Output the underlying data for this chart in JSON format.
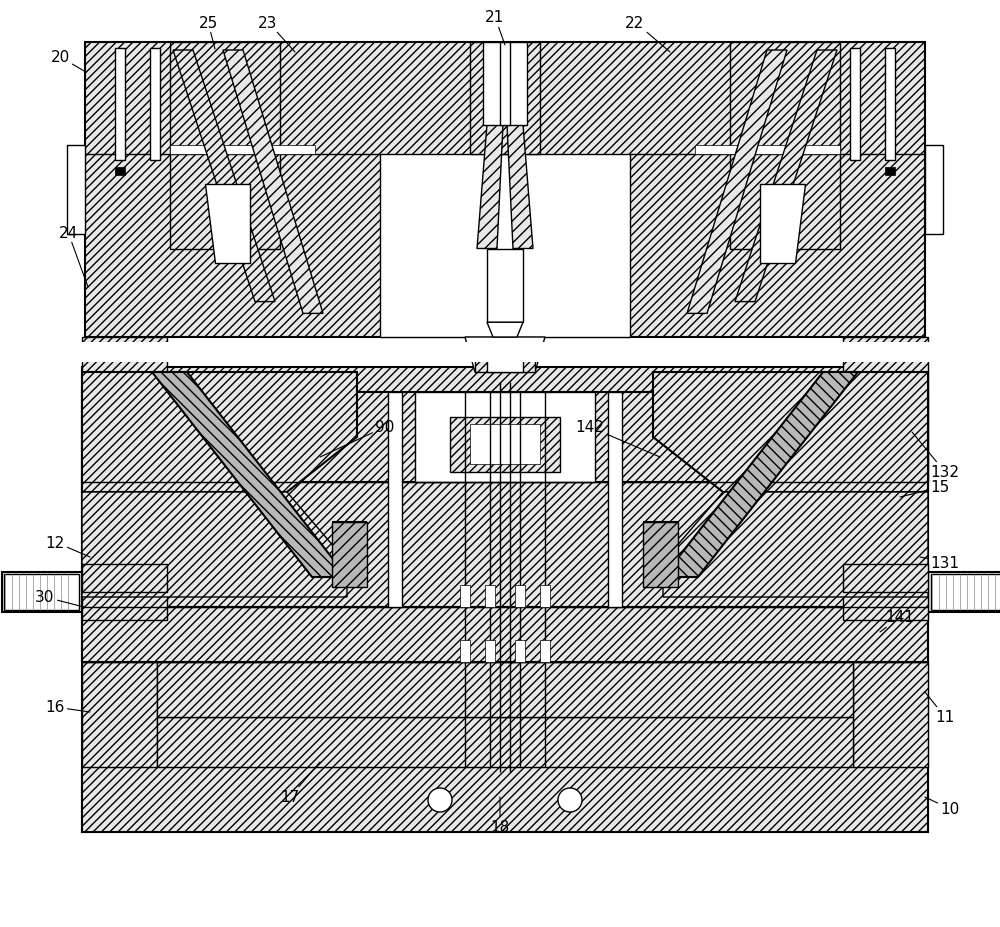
{
  "bg_color": "#ffffff",
  "figsize": [
    10.0,
    9.28
  ],
  "dpi": 100,
  "hatch_main": "////",
  "hatch_alt": "\\\\\\\\",
  "hatch_sparse": "///",
  "line_color": "#000000",
  "gray_fill": "#d8d8d8",
  "white_fill": "#ffffff",
  "light_fill": "#eeeeee"
}
